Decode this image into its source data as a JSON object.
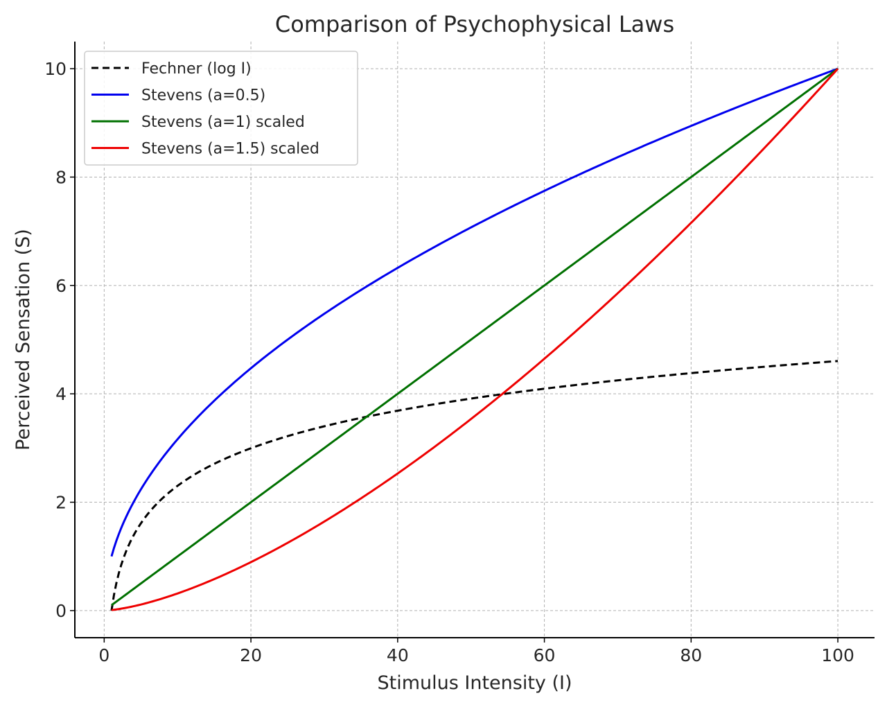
{
  "chart_data": {
    "type": "line",
    "title": "Comparison of Psychophysical Laws",
    "xlabel": "Stimulus Intensity (I)",
    "ylabel": "Perceived Sensation (S)",
    "xlim": [
      -4,
      105
    ],
    "ylim": [
      -0.5,
      10.5
    ],
    "x_range": [
      1,
      100
    ],
    "xticks": [
      0,
      20,
      40,
      60,
      80,
      100
    ],
    "yticks": [
      0,
      2,
      4,
      6,
      8,
      10
    ],
    "grid": true,
    "legend_position": "top-left",
    "series": [
      {
        "name": "Fechner (log I)",
        "color": "#000000",
        "style": "dashed",
        "points": [
          [
            1,
            0.0
          ],
          [
            2,
            0.69
          ],
          [
            3,
            1.1
          ],
          [
            5,
            1.61
          ],
          [
            7,
            1.95
          ],
          [
            10,
            2.3
          ],
          [
            15,
            2.71
          ],
          [
            20,
            3.0
          ],
          [
            25,
            3.22
          ],
          [
            30,
            3.4
          ],
          [
            35,
            3.56
          ],
          [
            40,
            3.69
          ],
          [
            45,
            3.81
          ],
          [
            50,
            3.91
          ],
          [
            55,
            4.01
          ],
          [
            60,
            4.09
          ],
          [
            65,
            4.17
          ],
          [
            70,
            4.25
          ],
          [
            75,
            4.32
          ],
          [
            80,
            4.38
          ],
          [
            85,
            4.44
          ],
          [
            90,
            4.5
          ],
          [
            95,
            4.55
          ],
          [
            100,
            4.61
          ]
        ]
      },
      {
        "name": "Stevens (a=0.5)",
        "color": "#0000ee",
        "style": "solid",
        "points": [
          [
            1,
            1.0
          ],
          [
            2,
            1.41
          ],
          [
            3,
            1.73
          ],
          [
            5,
            2.24
          ],
          [
            7,
            2.65
          ],
          [
            10,
            3.16
          ],
          [
            15,
            3.87
          ],
          [
            20,
            4.47
          ],
          [
            25,
            5.0
          ],
          [
            30,
            5.48
          ],
          [
            35,
            5.92
          ],
          [
            40,
            6.32
          ],
          [
            45,
            6.71
          ],
          [
            50,
            7.07
          ],
          [
            55,
            7.42
          ],
          [
            60,
            7.75
          ],
          [
            65,
            8.06
          ],
          [
            70,
            8.37
          ],
          [
            75,
            8.66
          ],
          [
            80,
            8.94
          ],
          [
            85,
            9.22
          ],
          [
            90,
            9.49
          ],
          [
            95,
            9.75
          ],
          [
            100,
            10.0
          ]
        ]
      },
      {
        "name": "Stevens (a=1) scaled",
        "color": "#007000",
        "style": "solid",
        "points": [
          [
            1,
            0.1
          ],
          [
            20,
            2.0
          ],
          [
            40,
            4.0
          ],
          [
            60,
            6.0
          ],
          [
            80,
            8.0
          ],
          [
            100,
            10.0
          ]
        ]
      },
      {
        "name": "Stevens (a=1.5) scaled",
        "color": "#ee0000",
        "style": "solid",
        "points": [
          [
            1,
            0.0
          ],
          [
            5,
            0.11
          ],
          [
            10,
            0.32
          ],
          [
            15,
            0.58
          ],
          [
            20,
            0.89
          ],
          [
            25,
            1.25
          ],
          [
            30,
            1.64
          ],
          [
            35,
            2.07
          ],
          [
            40,
            2.53
          ],
          [
            45,
            3.02
          ],
          [
            50,
            3.54
          ],
          [
            55,
            4.08
          ],
          [
            60,
            4.65
          ],
          [
            65,
            5.24
          ],
          [
            70,
            5.86
          ],
          [
            75,
            6.5
          ],
          [
            80,
            7.16
          ],
          [
            85,
            7.84
          ],
          [
            90,
            8.54
          ],
          [
            95,
            9.26
          ],
          [
            100,
            10.0
          ]
        ]
      }
    ]
  }
}
